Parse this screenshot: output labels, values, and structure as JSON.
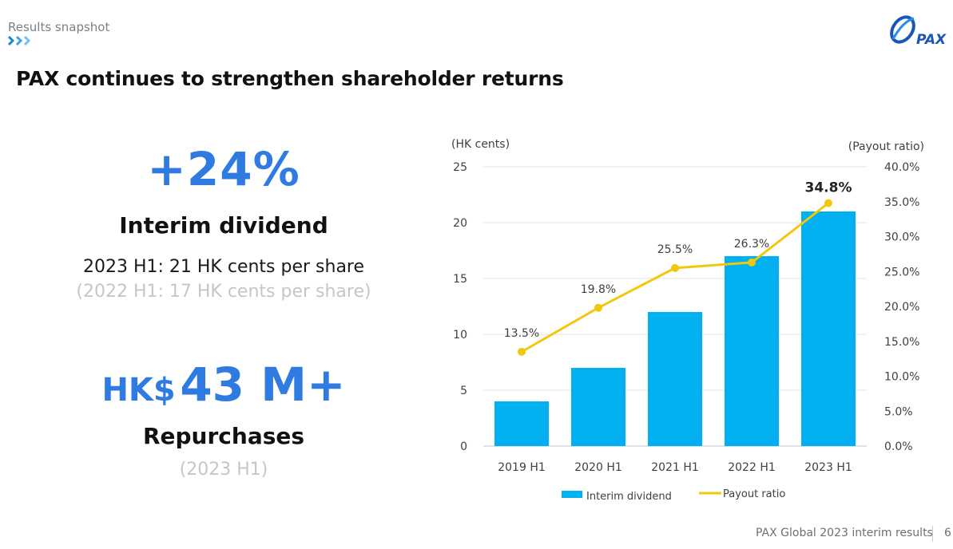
{
  "header": {
    "section": "Results snapshot",
    "title": "PAX continues to strengthen shareholder returns",
    "logo_text": "PAX"
  },
  "dividend": {
    "change": "+24%",
    "heading": "Interim dividend",
    "current": "2023 H1: 21 HK cents per share",
    "previous": "(2022 H1:  17 HK cents per share)"
  },
  "repurchase": {
    "currency": "HK$",
    "amount": "43 M+",
    "heading": "Repurchases",
    "period": "(2023 H1)"
  },
  "chart_data": {
    "type": "bar",
    "categories": [
      "2019 H1",
      "2020 H1",
      "2021 H1",
      "2022 H1",
      "2023 H1"
    ],
    "series": [
      {
        "name": "Interim dividend",
        "type": "bar",
        "axis": "left",
        "values": [
          4,
          7,
          12,
          17,
          21
        ],
        "color": "#00b0f0"
      },
      {
        "name": "Payout ratio",
        "type": "line",
        "axis": "right",
        "values": [
          13.5,
          19.8,
          25.5,
          26.3,
          34.8
        ],
        "labels": [
          "13.5%",
          "19.8%",
          "25.5%",
          "26.3%",
          "34.8%"
        ],
        "color": "#f2c80f"
      }
    ],
    "ylabel": "(HK cents)",
    "y2label": "(Payout ratio)",
    "ylim": [
      0,
      25
    ],
    "y2lim": [
      0,
      40
    ],
    "yticks": [
      "0",
      "5",
      "10",
      "15",
      "20",
      "25"
    ],
    "y2ticks": [
      "0.0%",
      "5.0%",
      "10.0%",
      "15.0%",
      "20.0%",
      "25.0%",
      "30.0%",
      "35.0%",
      "40.0%"
    ],
    "grid": true,
    "legend_position": "bottom"
  },
  "footer": {
    "text": "PAX Global 2023 interim results",
    "page": "6"
  },
  "colors": {
    "accent_blue": "#2f7be1",
    "bar_blue": "#00b0f0",
    "line_yellow": "#f2c80f",
    "chevron_blue": "#29a3e8"
  }
}
